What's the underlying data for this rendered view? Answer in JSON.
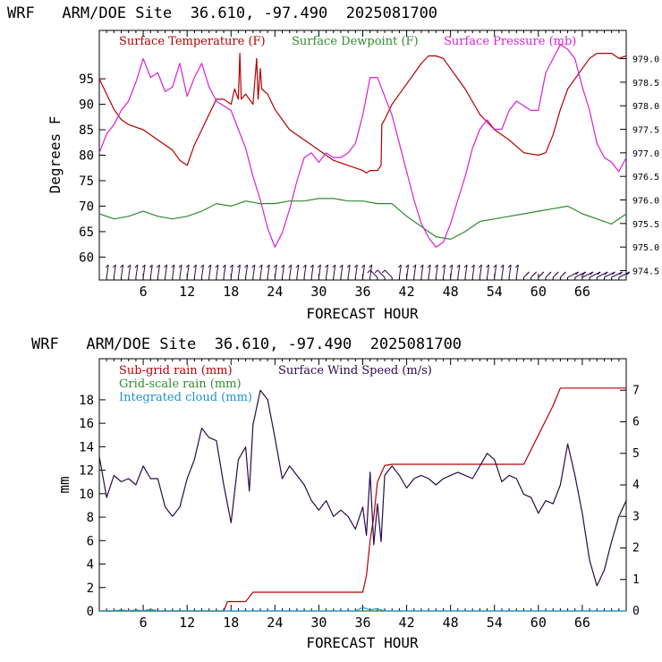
{
  "chart_data": [
    {
      "type": "line",
      "title": "WRF   ARM/DOE Site  36.610, -97.490  2025081700",
      "xlabel": "FORECAST HOUR",
      "ylabel": "Degrees F",
      "xlim": [
        0,
        72
      ],
      "ylim": [
        55.5,
        104.5
      ],
      "y2lim": [
        974.3,
        979.6
      ],
      "xticks": [
        "6",
        "12",
        "18",
        "24",
        "30",
        "36",
        "42",
        "48",
        "54",
        "60",
        "66"
      ],
      "yticks": [
        "60",
        "65",
        "70",
        "75",
        "80",
        "85",
        "90",
        "95"
      ],
      "y2ticks": [
        "974.5",
        "975.0",
        "975.5",
        "976.0",
        "976.5",
        "977.0",
        "977.5",
        "978.0",
        "978.5",
        "979.0"
      ],
      "legend_placement": "top",
      "series": [
        {
          "name": "Surface Temperature (F)",
          "axis": "left",
          "color": "#b30000",
          "x": [
            0,
            1,
            2,
            3,
            4,
            6,
            8,
            10,
            11,
            12,
            13,
            14,
            15,
            16,
            17,
            18,
            18.5,
            19,
            19.2,
            19.4,
            20,
            21,
            21.5,
            21.7,
            22,
            22.2,
            23,
            24,
            26,
            28,
            30,
            32,
            34,
            36,
            36.5,
            37,
            38,
            38.5,
            38.6,
            39,
            40,
            41,
            42,
            43,
            44,
            45,
            46,
            47,
            48,
            50,
            52,
            54,
            56,
            58,
            60,
            61,
            62,
            63,
            64,
            66,
            67,
            68,
            70,
            71,
            72
          ],
          "y": [
            95,
            92,
            89,
            87,
            86,
            85,
            83,
            81,
            79,
            78,
            82,
            85,
            88,
            91,
            91,
            90,
            93,
            91,
            100,
            91,
            92,
            90,
            99,
            91,
            97,
            93,
            92,
            89,
            85,
            83,
            81,
            79,
            78,
            77,
            76.5,
            77,
            77,
            78,
            86,
            87,
            90,
            92,
            94,
            96,
            98,
            99.5,
            99.5,
            99,
            97,
            93,
            88,
            85,
            83,
            80.5,
            80,
            80.5,
            84,
            89,
            93,
            97,
            99,
            100,
            100,
            99,
            99.5
          ]
        },
        {
          "name": "Surface Dewpoint (F)",
          "axis": "left",
          "color": "#2e8b2e",
          "x": [
            0,
            2,
            4,
            6,
            8,
            10,
            12,
            14,
            16,
            18,
            20,
            22,
            24,
            26,
            28,
            30,
            32,
            34,
            36,
            38,
            40,
            42,
            44,
            46,
            48,
            50,
            52,
            54,
            56,
            58,
            60,
            62,
            64,
            66,
            68,
            70,
            72
          ],
          "y": [
            68.5,
            67.5,
            68,
            69,
            68,
            67.5,
            68,
            69,
            70.5,
            70,
            71,
            70.5,
            70.5,
            71,
            71,
            71.5,
            71.5,
            71,
            71,
            70.5,
            70.5,
            68,
            66,
            64,
            63.5,
            65,
            67,
            67.5,
            68,
            68.5,
            69,
            69.5,
            70,
            68.5,
            67.5,
            66.5,
            68.5
          ]
        },
        {
          "name": "Surface Pressure (mb)",
          "axis": "right",
          "color": "#d81fd8",
          "x": [
            0,
            1,
            2,
            3,
            4,
            5,
            6,
            7,
            8,
            9,
            10,
            11,
            12,
            13,
            14,
            15,
            16,
            17,
            18,
            19,
            20,
            21,
            22,
            23,
            24,
            25,
            26,
            27,
            28,
            29,
            30,
            31,
            32,
            33,
            34,
            35,
            36,
            37,
            38,
            39,
            40,
            41,
            42,
            43,
            44,
            45,
            46,
            47,
            48,
            49,
            50,
            51,
            52,
            53,
            54,
            55,
            56,
            57,
            58,
            59,
            60,
            61,
            62,
            63,
            64,
            65,
            66,
            67,
            68,
            69,
            70,
            71,
            72
          ],
          "y": [
            977.0,
            977.4,
            977.6,
            977.9,
            978.1,
            978.5,
            979.0,
            978.6,
            978.7,
            978.3,
            978.4,
            978.9,
            978.2,
            978.6,
            978.9,
            978.4,
            978.1,
            978.0,
            977.9,
            977.5,
            977.1,
            976.5,
            976.0,
            975.4,
            975.0,
            975.3,
            975.8,
            976.4,
            976.9,
            977.0,
            976.8,
            977.0,
            976.9,
            976.9,
            977.0,
            977.2,
            977.8,
            978.6,
            978.6,
            978.2,
            977.8,
            977.2,
            976.6,
            976.0,
            975.5,
            975.2,
            975.0,
            975.1,
            975.5,
            976.0,
            976.5,
            977.1,
            977.5,
            977.7,
            977.5,
            977.5,
            977.9,
            978.1,
            978.0,
            977.9,
            977.9,
            978.7,
            979.0,
            979.3,
            979.2,
            979.0,
            978.4,
            977.9,
            977.2,
            976.9,
            976.8,
            976.6,
            976.9
          ]
        }
      ],
      "wind_barbs": "bottom row, one barb per forecast hour"
    },
    {
      "type": "line",
      "title": "WRF   ARM/DOE Site  36.610, -97.490  2025081700",
      "xlabel": "FORECAST HOUR",
      "ylabel": "mm",
      "xlim": [
        0,
        72
      ],
      "ylim": [
        0,
        21.5
      ],
      "y2lim": [
        0,
        8
      ],
      "xticks": [
        "6",
        "12",
        "18",
        "24",
        "30",
        "36",
        "42",
        "48",
        "54",
        "60",
        "66"
      ],
      "yticks": [
        "0",
        "2",
        "4",
        "6",
        "8",
        "10",
        "12",
        "14",
        "16",
        "18"
      ],
      "y2ticks": [
        "0",
        "1",
        "2",
        "3",
        "4",
        "5",
        "6",
        "7"
      ],
      "legend_placement": "top-left",
      "series": [
        {
          "name": "Sub-grid rain (mm)",
          "axis": "left",
          "color": "#b30000",
          "x": [
            0,
            17,
            17.5,
            20,
            21,
            36,
            36.5,
            37,
            37.5,
            38,
            39,
            40,
            58,
            60,
            62,
            63,
            64,
            72
          ],
          "y": [
            0,
            0,
            0.8,
            0.8,
            1.6,
            1.6,
            3,
            6,
            8,
            11,
            12.4,
            12.5,
            12.5,
            15,
            17.5,
            19,
            19,
            19
          ]
        },
        {
          "name": "Grid-scale rain (mm)",
          "axis": "left",
          "color": "#2e8b2e",
          "x": [
            0,
            72
          ],
          "y": [
            0,
            0
          ]
        },
        {
          "name": "Integrated cloud (mm)",
          "axis": "left",
          "color": "#1e90d0",
          "x": [
            0,
            2,
            3,
            4,
            5,
            6,
            7,
            8,
            35,
            36,
            37,
            38,
            39,
            72
          ],
          "y": [
            0,
            0,
            0.1,
            0,
            0.1,
            0,
            0.15,
            0,
            0,
            0.3,
            0.1,
            0.2,
            0,
            0
          ]
        },
        {
          "name": "Surface Wind Speed (m/s)",
          "axis": "right",
          "color": "#2a0a4a",
          "x": [
            0,
            1,
            2,
            3,
            4,
            5,
            6,
            7,
            8,
            9,
            10,
            11,
            12,
            13,
            14,
            15,
            16,
            17,
            18,
            19,
            20,
            20.5,
            21,
            22,
            23,
            24,
            25,
            26,
            27,
            28,
            29,
            30,
            31,
            32,
            33,
            34,
            35,
            36,
            36.5,
            37,
            37.5,
            38,
            38.5,
            39,
            40,
            41,
            42,
            43,
            44,
            45,
            46,
            47,
            48,
            49,
            50,
            51,
            52,
            53,
            54,
            55,
            56,
            57,
            58,
            59,
            60,
            61,
            62,
            63,
            64,
            65,
            66,
            67,
            68,
            69,
            70,
            71,
            72
          ],
          "y": [
            4.9,
            3.6,
            4.3,
            4.1,
            4.2,
            4.0,
            4.6,
            4.2,
            4.2,
            3.3,
            3.0,
            3.3,
            4.2,
            4.8,
            5.8,
            5.5,
            5.4,
            4.0,
            2.8,
            4.8,
            5.2,
            3.8,
            5.9,
            7.0,
            6.7,
            5.5,
            4.2,
            4.6,
            4.3,
            4.0,
            3.5,
            3.2,
            3.5,
            3.0,
            3.2,
            3.0,
            2.6,
            3.3,
            2.4,
            4.4,
            2.1,
            3.4,
            2.2,
            4.3,
            4.6,
            4.3,
            3.9,
            4.2,
            4.3,
            4.2,
            4.0,
            4.2,
            4.3,
            4.4,
            4.3,
            4.2,
            4.6,
            5.0,
            4.8,
            4.1,
            4.3,
            4.2,
            3.7,
            3.6,
            3.1,
            3.5,
            3.4,
            4.0,
            5.3,
            4.3,
            3.1,
            1.6,
            0.8,
            1.3,
            2.2,
            3.0,
            3.5
          ]
        }
      ]
    }
  ]
}
